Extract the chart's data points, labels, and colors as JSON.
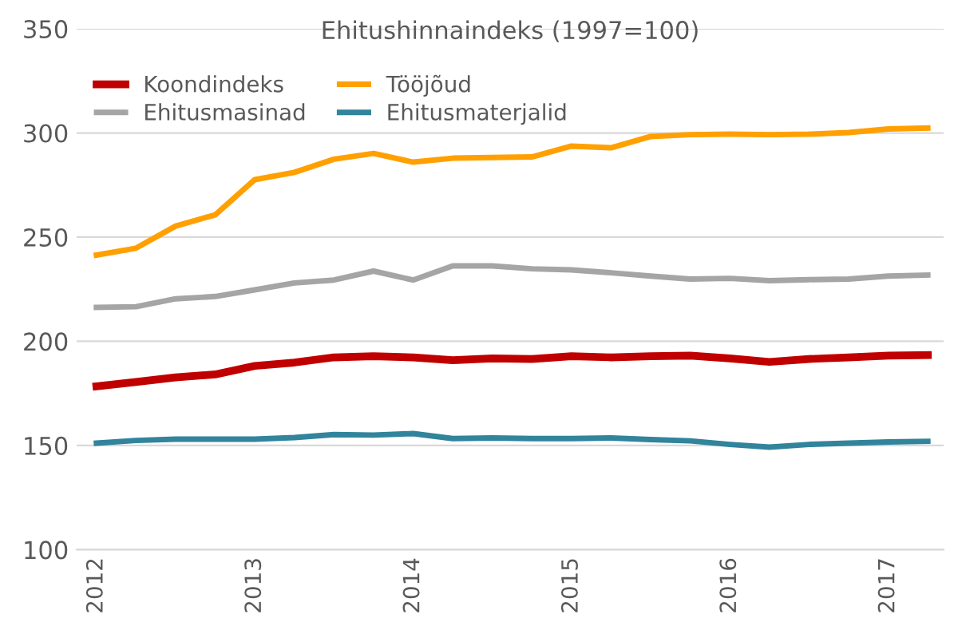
{
  "chart_data": {
    "type": "line",
    "title": "Ehitushinnaindeks (1997=100)",
    "categories": [
      "2012",
      null,
      null,
      null,
      "2013",
      null,
      null,
      null,
      "2014",
      null,
      null,
      null,
      "2015",
      null,
      null,
      null,
      "2016",
      null,
      null,
      null,
      "2017",
      null
    ],
    "series": [
      {
        "name": "Koondindeks",
        "color": "#c00000",
        "values": [
          178.4,
          180.5,
          182.7,
          184.1,
          188.2,
          189.8,
          192.3,
          192.8,
          192.3,
          190.9,
          191.8,
          191.5,
          192.8,
          192.3,
          192.8,
          193.1,
          191.8,
          190.1,
          191.5,
          192.3,
          193.1,
          193.4
        ]
      },
      {
        "name": "Tööjõud",
        "color": "#ffa000",
        "values": [
          241.4,
          244.7,
          255.3,
          260.7,
          277.6,
          281.1,
          287.4,
          290.2,
          286.0,
          287.9,
          288.2,
          288.5,
          293.7,
          292.9,
          298.3,
          299.2,
          299.4,
          299.2,
          299.4,
          300.2,
          301.9,
          302.4
        ]
      },
      {
        "name": "Ehitusmasinad",
        "color": "#a5a5a5",
        "values": [
          216.3,
          216.6,
          220.4,
          221.5,
          224.7,
          228.0,
          229.4,
          233.7,
          229.4,
          236.2,
          236.2,
          234.8,
          234.3,
          232.9,
          231.3,
          229.9,
          230.2,
          229.1,
          229.6,
          229.9,
          231.3,
          231.8
        ]
      },
      {
        "name": "Ehitusmaterjalid",
        "color": "#31849b",
        "values": [
          151.1,
          152.4,
          153.0,
          153.0,
          153.0,
          153.8,
          155.2,
          155.0,
          155.7,
          153.3,
          153.6,
          153.3,
          153.3,
          153.6,
          152.8,
          152.2,
          150.5,
          149.2,
          150.5,
          151.1,
          151.7,
          152.0
        ]
      }
    ],
    "ylim": [
      100,
      350
    ],
    "yticks": [
      100,
      150,
      200,
      250,
      300,
      350
    ],
    "grid": "y",
    "legend": "top left",
    "marker": "none",
    "line_style": "solid"
  }
}
